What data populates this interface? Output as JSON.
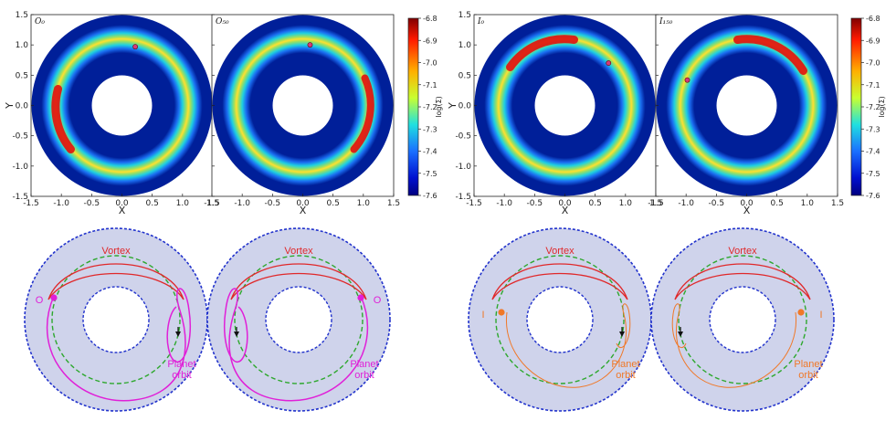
{
  "figure": {
    "top_panels": [
      {
        "id": "O0",
        "label": "O₀",
        "planet": [
          0.22,
          0.97
        ]
      },
      {
        "id": "O50",
        "label": "O₅₀",
        "planet": [
          0.12,
          1.0
        ]
      },
      {
        "id": "I0",
        "label": "I₀",
        "planet": [
          0.72,
          0.7
        ]
      },
      {
        "id": "I150",
        "label": "I₁₅₀",
        "planet": [
          -0.98,
          0.42
        ]
      }
    ],
    "axes": {
      "xlabel": "X",
      "ylabel": "Y",
      "xticks": [
        "-1.5",
        "-1.0",
        "-0.5",
        "0.0",
        "0.5",
        "1.0",
        "1.5"
      ],
      "yticks": [
        "1.5",
        "1.0",
        "0.5",
        "0.0",
        "-0.5",
        "-1.0",
        "-1.5"
      ],
      "xlim": [
        -1.5,
        1.5
      ],
      "ylim": [
        -1.5,
        1.5
      ]
    },
    "colorbar": {
      "label": "log(Σ)",
      "ticks": [
        "-6.8",
        "-6.9",
        "-7.0",
        "-7.1",
        "-7.2",
        "-7.3",
        "-7.4",
        "-7.5",
        "-7.6"
      ]
    },
    "diagrams": {
      "vortex_label": "Vortex",
      "orbit_label_line1": "Planet",
      "orbit_label_line2": "orbit",
      "outward_marker": "O",
      "inward_marker": "I"
    },
    "colors": {
      "vortex": "#e0282a",
      "resonance": "#2ea82e",
      "outward": "#e020d8",
      "inward": "#f07828",
      "disk_fill": "#cfd3eb",
      "disk_border": "#2233cc"
    }
  }
}
